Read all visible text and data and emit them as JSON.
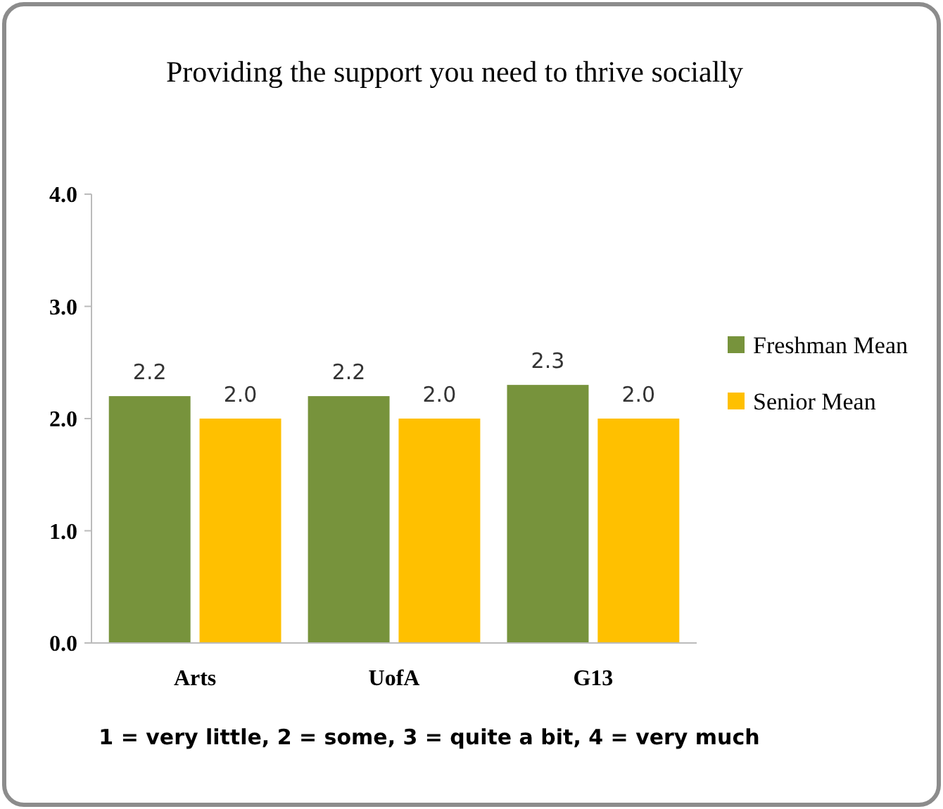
{
  "chart_data": {
    "type": "bar",
    "title": "Providing the support you need to thrive socially",
    "categories": [
      "Arts",
      "UofA",
      "G13"
    ],
    "series": [
      {
        "name": "Freshman Mean",
        "color": "#77933c",
        "values": [
          2.2,
          2.2,
          2.3
        ],
        "value_labels": [
          "2.2",
          "2.2",
          "2.3"
        ]
      },
      {
        "name": "Senior Mean",
        "color": "#ffc000",
        "values": [
          2.0,
          2.0,
          2.0
        ],
        "value_labels": [
          "2.0",
          "2.0",
          "2.0"
        ]
      }
    ],
    "ylim": [
      0,
      4
    ],
    "yticks": [
      {
        "value": 0,
        "label": "0.0"
      },
      {
        "value": 1,
        "label": "1.0"
      },
      {
        "value": 2,
        "label": "2.0"
      },
      {
        "value": 3,
        "label": "3.0"
      },
      {
        "value": 4,
        "label": "4.0"
      }
    ],
    "legend": "right",
    "grid": false,
    "annotations": [
      "1 = very little, 2 = some, 3 = quite a bit, 4 = very much"
    ]
  }
}
